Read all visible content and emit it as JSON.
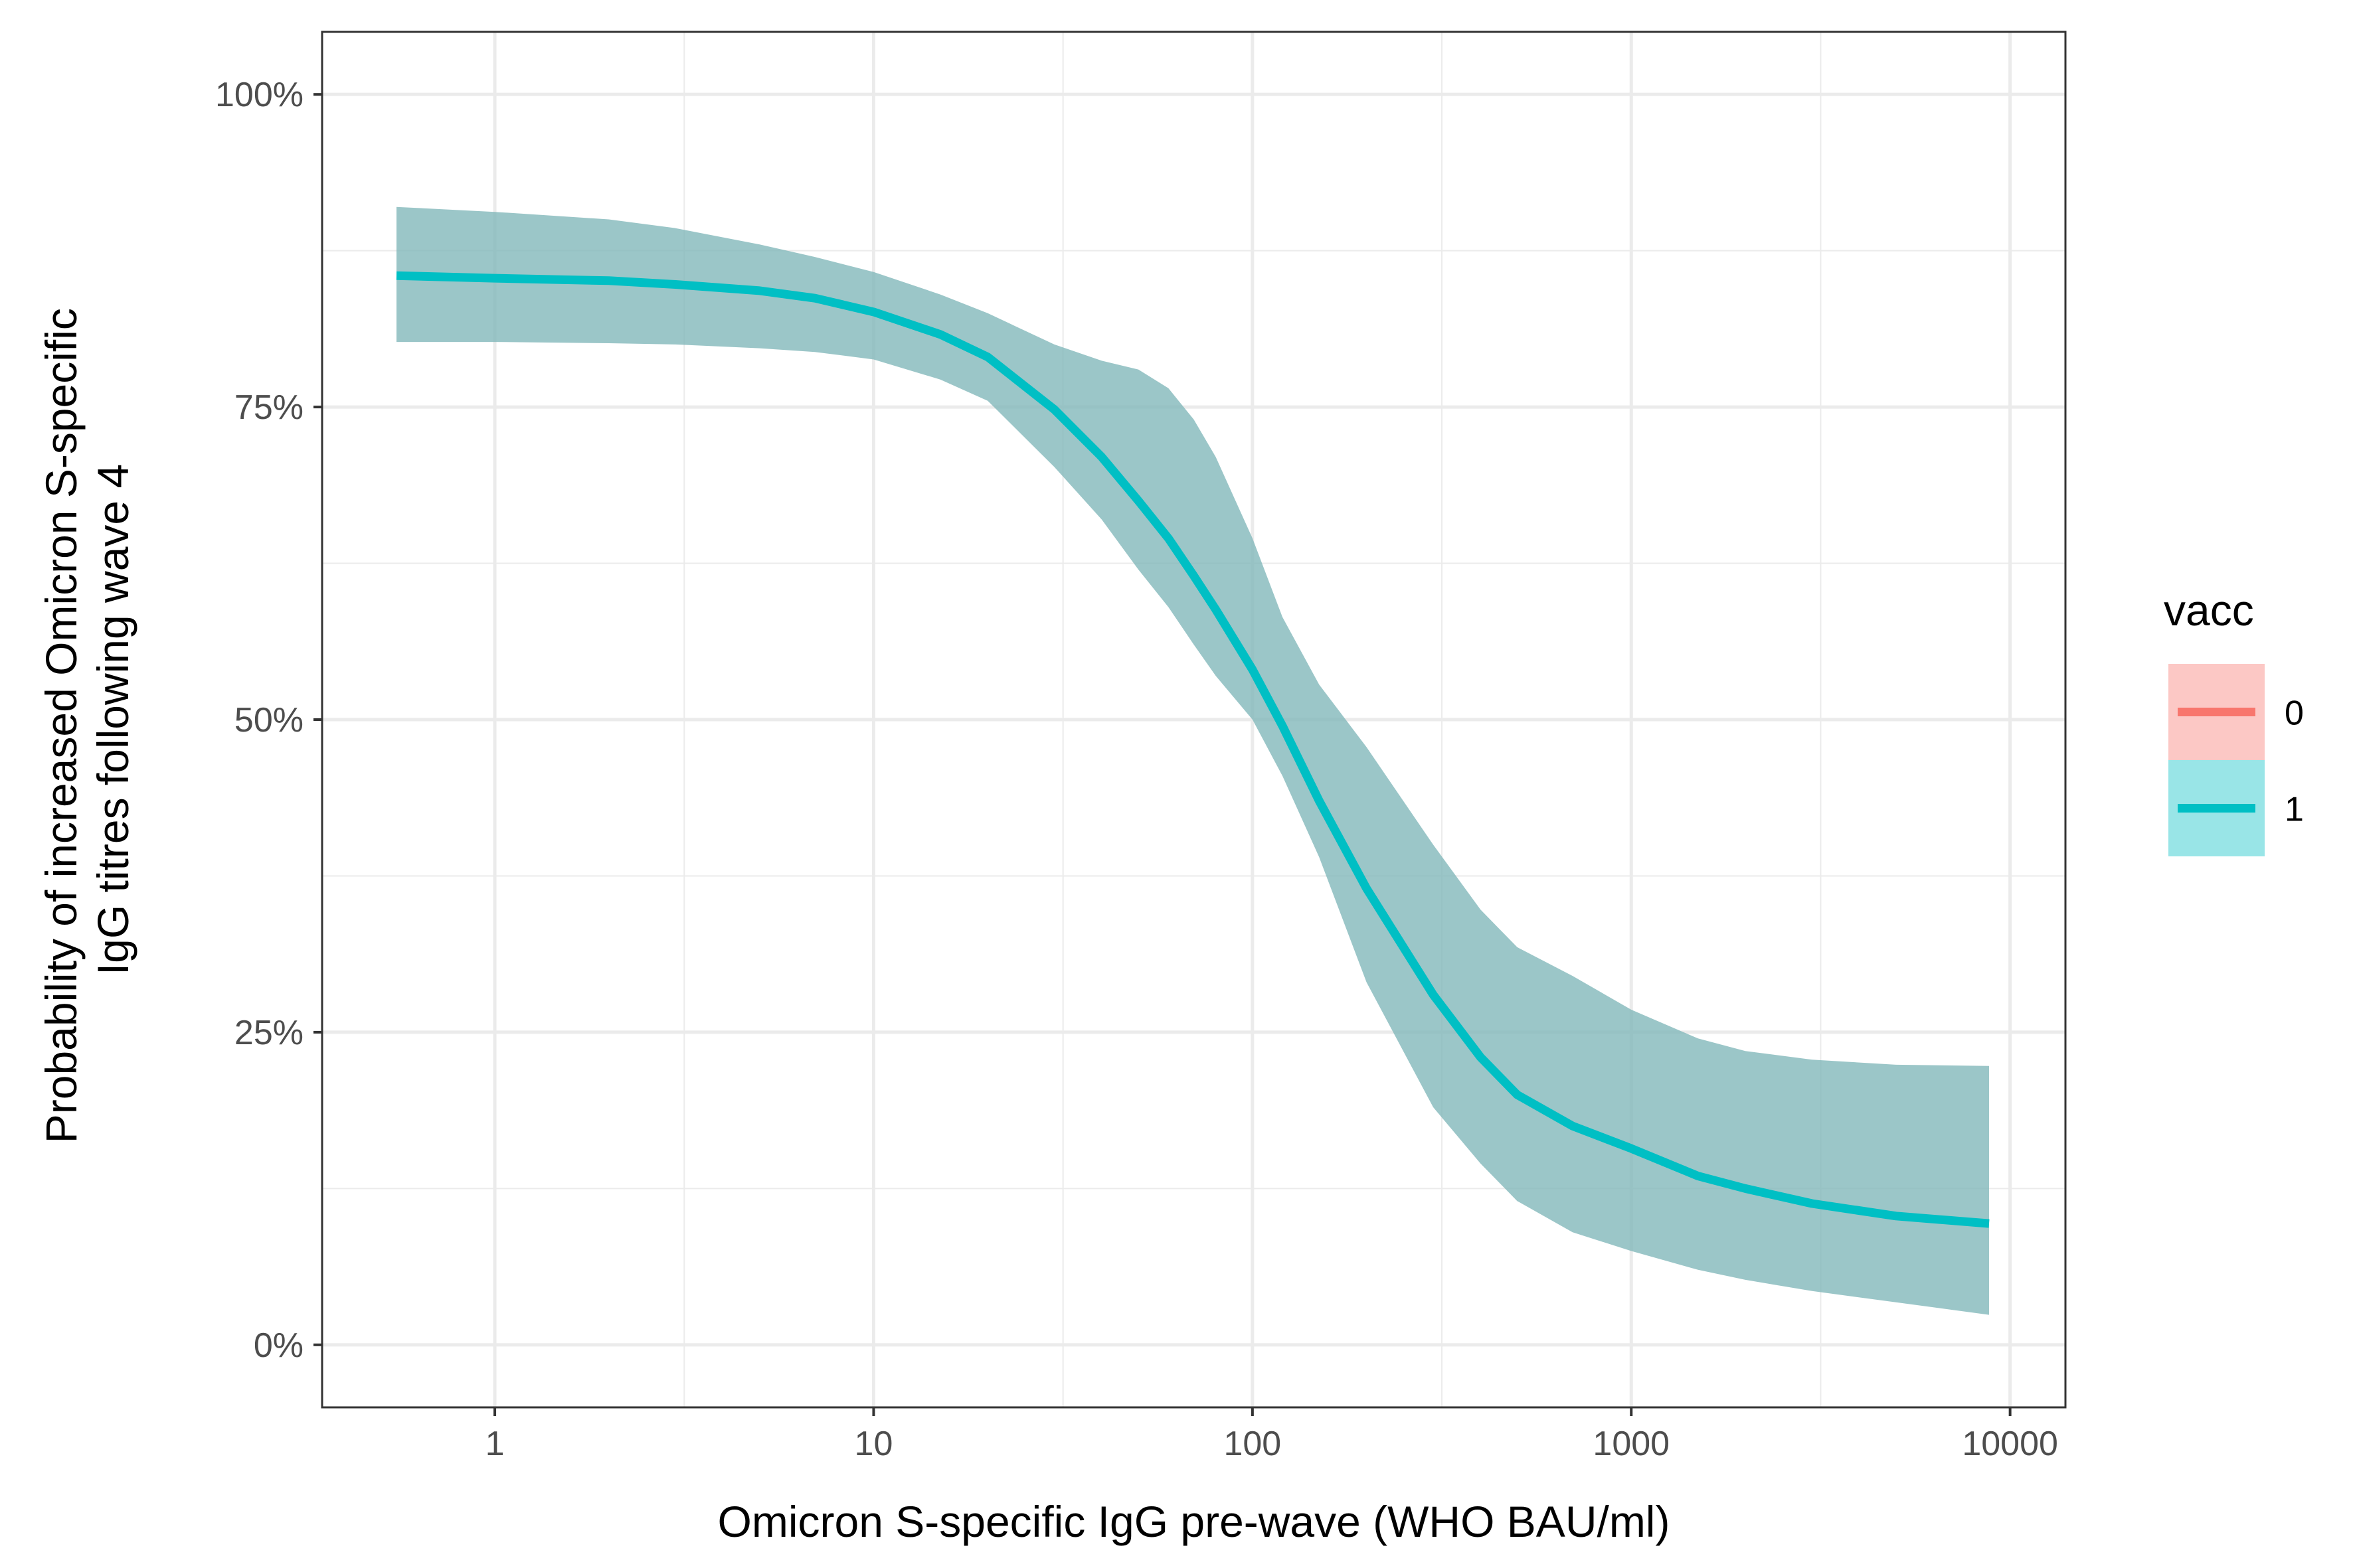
{
  "chart_data": {
    "type": "line",
    "x_scale": "log10",
    "xlabel": "Omicron S-specific IgG pre-wave (WHO BAU/ml)",
    "ylabel": [
      "Probability of increased Omicron S-specific",
      "IgG titres following wave 4"
    ],
    "xlim": [
      0.35,
      14000
    ],
    "ylim": [
      -0.05,
      1.05
    ],
    "x_ticks": [
      1,
      10,
      100,
      1000,
      10000
    ],
    "x_tick_labels": [
      "1",
      "10",
      "100",
      "1000",
      "10000"
    ],
    "y_ticks": [
      0,
      0.25,
      0.5,
      0.75,
      1.0
    ],
    "y_tick_labels": [
      "0%",
      "25%",
      "50%",
      "75%",
      "100%"
    ],
    "grid": true,
    "legend": {
      "title": "vacc",
      "position": "right",
      "entries": [
        {
          "label": "0",
          "line_color": "#F8766D",
          "fill_color": "#F8766D"
        },
        {
          "label": "1",
          "line_color": "#00BFC4",
          "fill_color": "#00BFC4"
        }
      ]
    },
    "series": [
      {
        "name": "1",
        "color": "#00BFC4",
        "ribbon_color": "#7FB6B8",
        "x": [
          0.55,
          1,
          2,
          3,
          5,
          7,
          10,
          15,
          20,
          30,
          40,
          50,
          60,
          70,
          80,
          100,
          120,
          150,
          200,
          300,
          400,
          500,
          700,
          1000,
          1500,
          2000,
          3000,
          5000,
          8800
        ],
        "y": [
          0.855,
          0.853,
          0.851,
          0.848,
          0.843,
          0.837,
          0.826,
          0.808,
          0.79,
          0.748,
          0.71,
          0.675,
          0.645,
          0.615,
          0.588,
          0.54,
          0.495,
          0.435,
          0.365,
          0.28,
          0.23,
          0.2,
          0.175,
          0.157,
          0.135,
          0.125,
          0.113,
          0.103,
          0.097
        ],
        "y_lower": [
          0.802,
          0.802,
          0.801,
          0.8,
          0.797,
          0.794,
          0.788,
          0.772,
          0.755,
          0.702,
          0.66,
          0.62,
          0.59,
          0.56,
          0.535,
          0.5,
          0.455,
          0.39,
          0.29,
          0.19,
          0.145,
          0.115,
          0.09,
          0.075,
          0.06,
          0.052,
          0.043,
          0.034,
          0.024
        ],
        "y_upper": [
          0.91,
          0.906,
          0.9,
          0.893,
          0.88,
          0.87,
          0.858,
          0.84,
          0.825,
          0.8,
          0.787,
          0.78,
          0.765,
          0.74,
          0.71,
          0.645,
          0.582,
          0.528,
          0.478,
          0.4,
          0.348,
          0.318,
          0.295,
          0.268,
          0.245,
          0.235,
          0.228,
          0.224,
          0.223
        ]
      }
    ]
  }
}
